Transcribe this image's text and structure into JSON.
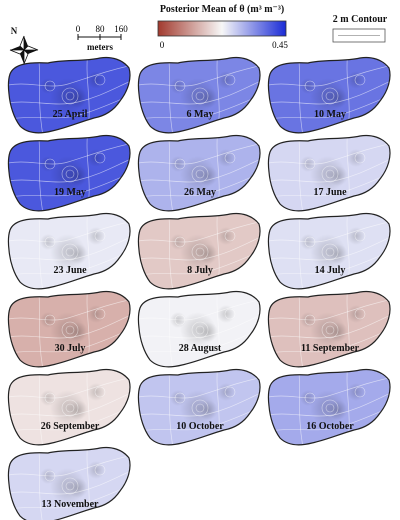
{
  "legend": {
    "title": "Posterior Mean of θ (m³ m⁻³)",
    "min_label": "0",
    "max_label": "0.45",
    "colors": {
      "low": "#a23a2e",
      "mid": "#f7f7f7",
      "high": "#1a2bd6"
    }
  },
  "scale_bar": {
    "labels": [
      "0",
      "80",
      "160"
    ],
    "units": "meters"
  },
  "north_label": "N",
  "contour_legend": {
    "label": "2 m Contour"
  },
  "panels": [
    {
      "date": "25 April",
      "theta": 0.4
    },
    {
      "date": "6 May",
      "theta": 0.35
    },
    {
      "date": "10 May",
      "theta": 0.37
    },
    {
      "date": "19 May",
      "theta": 0.4
    },
    {
      "date": "26 May",
      "theta": 0.3
    },
    {
      "date": "17 June",
      "theta": 0.26
    },
    {
      "date": "23 June",
      "theta": 0.24
    },
    {
      "date": "8 July",
      "theta": 0.17
    },
    {
      "date": "14 July",
      "theta": 0.25
    },
    {
      "date": "30 July",
      "theta": 0.14
    },
    {
      "date": "28 August",
      "theta": 0.23
    },
    {
      "date": "11 September",
      "theta": 0.16
    },
    {
      "date": "26 September",
      "theta": 0.2
    },
    {
      "date": "10 October",
      "theta": 0.28
    },
    {
      "date": "16 October",
      "theta": 0.31
    },
    {
      "date": "13 November",
      "theta": 0.26
    }
  ]
}
